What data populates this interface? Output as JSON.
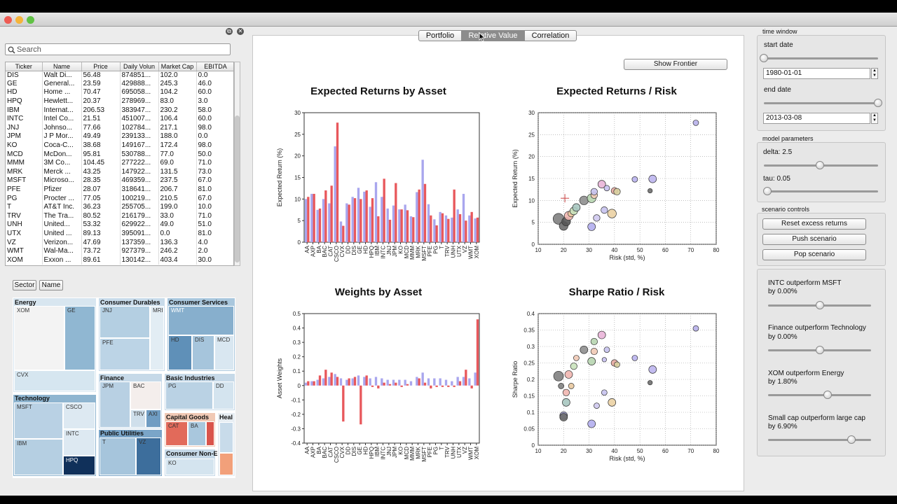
{
  "search": {
    "placeholder": "Search"
  },
  "table": {
    "headers": [
      "Ticker",
      "Name",
      "Price",
      "Daily Volun",
      "Market Cap",
      "EBITDA"
    ],
    "rows": [
      [
        "DIS",
        "Walt Di...",
        "56.48",
        "874851...",
        "102.0",
        "0.0"
      ],
      [
        "GE",
        "General...",
        "23.59",
        "429888...",
        "245.3",
        "46.0"
      ],
      [
        "HD",
        "Home ...",
        "70.47",
        "695058...",
        "104.2",
        "60.0"
      ],
      [
        "HPQ",
        "Hewlett...",
        "20.37",
        "278969...",
        "83.0",
        "3.0"
      ],
      [
        "IBM",
        "Internat...",
        "206.53",
        "383947...",
        "230.2",
        "58.0"
      ],
      [
        "INTC",
        "Intel Co...",
        "21.51",
        "451007...",
        "106.4",
        "60.0"
      ],
      [
        "JNJ",
        "Johnso...",
        "77.66",
        "102784...",
        "217.1",
        "98.0"
      ],
      [
        "JPM",
        "J P Mor...",
        "49.49",
        "239133...",
        "188.0",
        "0.0"
      ],
      [
        "KO",
        "Coca-C...",
        "38.68",
        "149167...",
        "172.4",
        "98.0"
      ],
      [
        "MCD",
        "McDon...",
        "95.81",
        "530788...",
        "77.0",
        "50.0"
      ],
      [
        "MMM",
        "3M Co...",
        "104.45",
        "277222...",
        "69.0",
        "71.0"
      ],
      [
        "MRK",
        "Merck ...",
        "43.25",
        "147922...",
        "131.5",
        "73.0"
      ],
      [
        "MSFT",
        "Microso...",
        "28.35",
        "469359...",
        "237.5",
        "67.0"
      ],
      [
        "PFE",
        "Pfizer",
        "28.07",
        "318641...",
        "206.7",
        "81.0"
      ],
      [
        "PG",
        "Procter ...",
        "77.05",
        "100219...",
        "210.5",
        "67.0"
      ],
      [
        "T",
        "AT&T Inc.",
        "36.23",
        "255705...",
        "199.0",
        "10.0"
      ],
      [
        "TRV",
        "The Tra...",
        "80.52",
        "216179...",
        "33.0",
        "71.0"
      ],
      [
        "UNH",
        "United...",
        "53.32",
        "629922...",
        "49.0",
        "51.0"
      ],
      [
        "UTX",
        "United ...",
        "89.13",
        "395091...",
        "0.0",
        "81.0"
      ],
      [
        "VZ",
        "Verizon...",
        "47.69",
        "137359...",
        "136.3",
        "4.0"
      ],
      [
        "WMT",
        "Wal-Ma...",
        "73.72",
        "927379...",
        "246.2",
        "2.0"
      ],
      [
        "XOM",
        "Exxon ...",
        "89.61",
        "130142...",
        "403.4",
        "30.0"
      ]
    ]
  },
  "treemap_controls": {
    "sector_label": "Sector",
    "name_label": "Name"
  },
  "treemap": {
    "sectors": [
      "Energy",
      "Consumer Durables",
      "Consumer Services",
      "Technology",
      "Finance",
      "Basic Industries",
      "Public Utilities",
      "Capital Goods",
      "Heal",
      "Consumer Non-E"
    ],
    "cells": [
      "XOM",
      "GE",
      "CVX",
      "JNJ",
      "MRI",
      "PFE",
      "WMT",
      "HD",
      "DIS",
      "MCD",
      "MSFT",
      "CSCO",
      "INTC",
      "IBM",
      "HPQ",
      "JPM",
      "BAC",
      "TRV",
      "AXI",
      "PG",
      "DD",
      "T",
      "VZ",
      "CAT",
      "BA",
      "KO"
    ]
  },
  "tabs": [
    "Portfolio",
    "Relative Value",
    "Correlation"
  ],
  "frontier_button": "Show Frontier",
  "chart_data": [
    {
      "type": "bar",
      "title": "Expected Returns by Asset",
      "xlabel": "",
      "ylabel": "Expected Return (%)",
      "ylim": [
        0,
        30
      ],
      "yticks": [
        0,
        5,
        10,
        15,
        20,
        25,
        30
      ],
      "categories": [
        "AA",
        "AXP",
        "BA",
        "BAC",
        "CAT",
        "CSCO",
        "CVX",
        "DD",
        "DIS",
        "GE",
        "HD",
        "HPQ",
        "IBM",
        "INTC",
        "JNJ",
        "JPM",
        "KO",
        "MCD",
        "MMM",
        "MRK",
        "MSFT",
        "PFE",
        "PG",
        "T",
        "TRV",
        "UNH",
        "UTX",
        "VZ",
        "WMT",
        "XOM"
      ],
      "series": [
        {
          "values": [
            10,
            11.2,
            7.5,
            10,
            9,
            22.2,
            4.8,
            9,
            10.5,
            12.6,
            11.7,
            8.2,
            13.9,
            10.5,
            7.8,
            8.5,
            7.6,
            8.7,
            6,
            11.6,
            19.1,
            8.8,
            5.3,
            7,
            6.2,
            5.7,
            7.6,
            11.2,
            6.2,
            5.5
          ]
        },
        {
          "values": [
            10.5,
            11.2,
            7.8,
            12,
            13.1,
            27.7,
            3.8,
            8.7,
            10.2,
            10,
            12,
            10.2,
            6,
            14.7,
            5.2,
            13.7,
            7.6,
            7.4,
            5.8,
            12.2,
            13.5,
            6.2,
            3.9,
            6.7,
            5.4,
            12.2,
            6.5,
            5,
            7,
            5.7
          ]
        }
      ],
      "colors": [
        "#a9a6ee",
        "#e8585c"
      ]
    },
    {
      "type": "scatter",
      "title": "Expected Returns / Risk",
      "xlabel": "Risk (std, %)",
      "ylabel": "Expected Return (%)",
      "xlim": [
        10,
        80
      ],
      "ylim": [
        0,
        30
      ],
      "xticks": [
        10,
        20,
        30,
        40,
        50,
        60,
        70,
        80
      ],
      "yticks": [
        0,
        5,
        10,
        15,
        20,
        25,
        30
      ],
      "points": [
        {
          "x": 18,
          "y": 5.8,
          "s": 9,
          "c": "#7f7f7f"
        },
        {
          "x": 20,
          "y": 4.2,
          "s": 7,
          "c": "#6d6d6d"
        },
        {
          "x": 21,
          "y": 5.2,
          "s": 7,
          "c": "#555"
        },
        {
          "x": 22,
          "y": 6.5,
          "s": 7,
          "c": "#f1b6b0"
        },
        {
          "x": 23,
          "y": 7,
          "s": 5,
          "c": "#e9c9a0"
        },
        {
          "x": 24,
          "y": 7.6,
          "s": 6,
          "c": "#c9e2bb"
        },
        {
          "x": 25,
          "y": 8.4,
          "s": 6,
          "c": "#a7c6c0"
        },
        {
          "x": 28,
          "y": 10,
          "s": 7,
          "c": "#8e8e8e"
        },
        {
          "x": 31,
          "y": 4,
          "s": 6,
          "c": "#b3aeee"
        },
        {
          "x": 31,
          "y": 10.5,
          "s": 7,
          "c": "#b7d5b0"
        },
        {
          "x": 32,
          "y": 11.2,
          "s": 5,
          "c": "#f0c9b5"
        },
        {
          "x": 32,
          "y": 12,
          "s": 5,
          "c": "#c7c2ee"
        },
        {
          "x": 33,
          "y": 6,
          "s": 5,
          "c": "#cfc9f0"
        },
        {
          "x": 35,
          "y": 13.7,
          "s": 6,
          "c": "#e9b4d8"
        },
        {
          "x": 36,
          "y": 7.8,
          "s": 5,
          "c": "#c7c2ee"
        },
        {
          "x": 37,
          "y": 12.8,
          "s": 4,
          "c": "#c6c0f0"
        },
        {
          "x": 39,
          "y": 7,
          "s": 7,
          "c": "#ebd2a4"
        },
        {
          "x": 40,
          "y": 12.2,
          "s": 5,
          "c": "#e5a8a0"
        },
        {
          "x": 41,
          "y": 12,
          "s": 5,
          "c": "#d8d0a0"
        },
        {
          "x": 48,
          "y": 14.8,
          "s": 4,
          "c": "#b9b2ee"
        },
        {
          "x": 54,
          "y": 12.2,
          "s": 3,
          "c": "#6e6e6e"
        },
        {
          "x": 55,
          "y": 14.9,
          "s": 6,
          "c": "#bcb5ee"
        },
        {
          "x": 72,
          "y": 27.7,
          "s": 4,
          "c": "#b7b0ea"
        }
      ],
      "marker": {
        "x": 20.5,
        "y": 10.5
      }
    },
    {
      "type": "bar",
      "title": "Weights by Asset",
      "xlabel": "",
      "ylabel": "Asset Weights",
      "ylim": [
        -0.4,
        0.5
      ],
      "yticks": [
        -0.4,
        -0.3,
        -0.2,
        -0.1,
        0,
        0.1,
        0.2,
        0.3,
        0.4,
        0.5
      ],
      "categories": [
        "AA",
        "AXP",
        "BA",
        "BAC",
        "CAT",
        "CSCO",
        "CVX",
        "DD",
        "DIS",
        "GE",
        "HD",
        "HPQ",
        "IBM",
        "INTC",
        "JNJ",
        "JPM",
        "KO",
        "MCD",
        "MMM",
        "MRK",
        "MSFT",
        "PFE",
        "PG",
        "T",
        "TRV",
        "UNH",
        "UTX",
        "VZ",
        "WMT",
        "XOM"
      ],
      "series": [
        {
          "values": [
            0.02,
            0.03,
            0.04,
            0.05,
            0.06,
            0.08,
            0.05,
            0.04,
            0.05,
            0.07,
            0.06,
            0.05,
            0.06,
            0.05,
            0.04,
            0.04,
            0.04,
            0.04,
            0.03,
            0.06,
            0.09,
            0.05,
            0.05,
            0.05,
            0.04,
            0.03,
            0.06,
            0.06,
            0.05,
            0.09
          ]
        },
        {
          "values": [
            0.03,
            0.03,
            0.07,
            0.11,
            0.09,
            0.06,
            -0.25,
            0.05,
            0.06,
            -0.27,
            0.07,
            -0.01,
            -0.02,
            0.02,
            0.01,
            0.02,
            -0.01,
            0.01,
            0.0,
            0.05,
            0.02,
            -0.02,
            -0.01,
            -0.01,
            -0.01,
            -0.01,
            0.03,
            0.11,
            -0.02,
            0.46
          ]
        }
      ],
      "colors": [
        "#a9a6ee",
        "#e8585c"
      ]
    },
    {
      "type": "scatter",
      "title": "Sharpe Ratio / Risk",
      "xlabel": "Risk (std, %)",
      "ylabel": "Sharpe Ratio",
      "xlim": [
        10,
        80
      ],
      "ylim": [
        0,
        0.4
      ],
      "xticks": [
        10,
        20,
        30,
        40,
        50,
        60,
        70,
        80
      ],
      "yticks": [
        0,
        0.05,
        0.1,
        0.15,
        0.2,
        0.25,
        0.3,
        0.35,
        0.4
      ],
      "points": [
        {
          "x": 18,
          "y": 0.21,
          "s": 8,
          "c": "#7f7f7f"
        },
        {
          "x": 19,
          "y": 0.18,
          "s": 4,
          "c": "#7f7f7f"
        },
        {
          "x": 20,
          "y": 0.09,
          "s": 6,
          "c": "#9a9ac8"
        },
        {
          "x": 20,
          "y": 0.085,
          "s": 6,
          "c": "#6d6d6d"
        },
        {
          "x": 21,
          "y": 0.16,
          "s": 5,
          "c": "#f1b6b0"
        },
        {
          "x": 21,
          "y": 0.13,
          "s": 6,
          "c": "#a7c6c0"
        },
        {
          "x": 22,
          "y": 0.215,
          "s": 6,
          "c": "#f1b6b0"
        },
        {
          "x": 23,
          "y": 0.18,
          "s": 4,
          "c": "#e9c9a0"
        },
        {
          "x": 24,
          "y": 0.24,
          "s": 5,
          "c": "#c9e2bb"
        },
        {
          "x": 25,
          "y": 0.265,
          "s": 4,
          "c": "#f0c9b5"
        },
        {
          "x": 28,
          "y": 0.29,
          "s": 6,
          "c": "#8e8e8e"
        },
        {
          "x": 31,
          "y": 0.065,
          "s": 6,
          "c": "#b3aeee"
        },
        {
          "x": 31,
          "y": 0.255,
          "s": 6,
          "c": "#b7d5b0"
        },
        {
          "x": 32,
          "y": 0.285,
          "s": 5,
          "c": "#f0c9b5"
        },
        {
          "x": 32,
          "y": 0.315,
          "s": 5,
          "c": "#b7d5b0"
        },
        {
          "x": 33,
          "y": 0.12,
          "s": 4,
          "c": "#cfc9f0"
        },
        {
          "x": 35,
          "y": 0.335,
          "s": 6,
          "c": "#e9b4d8"
        },
        {
          "x": 36,
          "y": 0.16,
          "s": 4,
          "c": "#c7c2ee"
        },
        {
          "x": 36,
          "y": 0.26,
          "s": 3,
          "c": "#c6c0f0"
        },
        {
          "x": 37,
          "y": 0.29,
          "s": 4,
          "c": "#c7c2ee"
        },
        {
          "x": 39,
          "y": 0.13,
          "s": 6,
          "c": "#ebd2a4"
        },
        {
          "x": 40,
          "y": 0.25,
          "s": 5,
          "c": "#e5a8a0"
        },
        {
          "x": 41,
          "y": 0.245,
          "s": 4,
          "c": "#d8d0a0"
        },
        {
          "x": 48,
          "y": 0.265,
          "s": 4,
          "c": "#b9b2ee"
        },
        {
          "x": 54,
          "y": 0.19,
          "s": 3,
          "c": "#6e6e6e"
        },
        {
          "x": 55,
          "y": 0.23,
          "s": 6,
          "c": "#bcb5ee"
        },
        {
          "x": 72,
          "y": 0.355,
          "s": 4,
          "c": "#b7b0ea"
        }
      ]
    }
  ],
  "time_window": {
    "title": "time window",
    "start_label": "start date",
    "start_value": "1980-01-01",
    "start_slider": 0.0,
    "end_label": "end date",
    "end_value": "2013-03-08",
    "end_slider": 1.0
  },
  "model_parameters": {
    "title": "model parameters",
    "delta_label": "delta:  2.5",
    "delta_slider": 0.49,
    "tau_label": "tau:  0.05",
    "tau_slider": 0.03
  },
  "scenario_controls": {
    "title": "scenario controls",
    "buttons": [
      "Reset excess returns",
      "Push scenario",
      "Pop scenario"
    ]
  },
  "scenarios": [
    {
      "label": "INTC outperform MSFT",
      "value": "by 0.00%",
      "slider": 0.5
    },
    {
      "label": "Finance outperform Technology",
      "value": "by 0.00%",
      "slider": 0.5
    },
    {
      "label": "XOM outperform Energy",
      "value": "by 1.80%",
      "slider": 0.58
    },
    {
      "label": "Small cap outperform large cap",
      "value": "by 6.90%",
      "slider": 0.81
    }
  ],
  "colors": {
    "accent_blue": "#a9a6ee",
    "accent_red": "#e8585c",
    "tab_active": "#8c8c8c"
  }
}
